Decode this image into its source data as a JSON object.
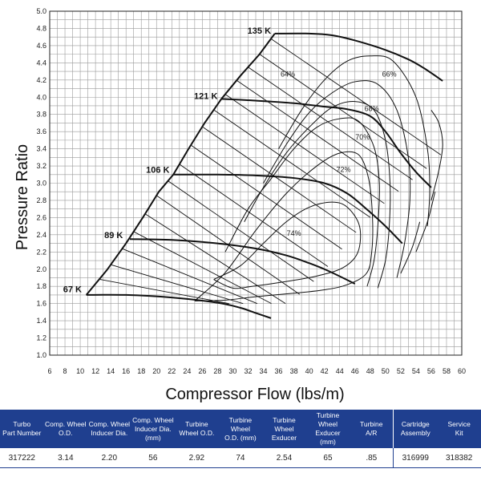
{
  "chart_data": {
    "type": "line",
    "title": "",
    "xlabel": "Compressor Flow (lbs/m)",
    "ylabel": "Pressure Ratio",
    "xlim": [
      6,
      60
    ],
    "ylim": [
      1.0,
      5.0
    ],
    "x_ticks": [
      6,
      8,
      10,
      12,
      14,
      16,
      18,
      20,
      22,
      24,
      26,
      28,
      30,
      32,
      34,
      36,
      38,
      40,
      42,
      44,
      46,
      48,
      50,
      52,
      54,
      56,
      58,
      60
    ],
    "y_ticks": [
      "1.0",
      "1.2",
      "1.4",
      "1.6",
      "1.8",
      "2.0",
      "2.2",
      "2.4",
      "2.6",
      "2.8",
      "3.0",
      "3.2",
      "3.4",
      "3.6",
      "3.8",
      "4.0",
      "4.2",
      "4.4",
      "4.6",
      "4.8",
      "5.0"
    ],
    "grid": true,
    "surge_line": [
      [
        10.8,
        1.7
      ],
      [
        13.5,
        1.99
      ],
      [
        16.0,
        2.3
      ],
      [
        18.2,
        2.6
      ],
      [
        20.3,
        2.9
      ],
      [
        22.2,
        3.1
      ],
      [
        24.2,
        3.4
      ],
      [
        26.3,
        3.7
      ],
      [
        28.5,
        3.98
      ],
      [
        31.0,
        4.25
      ],
      [
        33.5,
        4.5
      ],
      [
        35.5,
        4.74
      ]
    ],
    "speed_lines": [
      {
        "label": "67 K",
        "points": [
          [
            10.8,
            1.7
          ],
          [
            16.0,
            1.7
          ],
          [
            22.0,
            1.67
          ],
          [
            28.0,
            1.61
          ],
          [
            31.0,
            1.55
          ],
          [
            33.0,
            1.49
          ],
          [
            35.0,
            1.43
          ]
        ]
      },
      {
        "label": "89 K",
        "points": [
          [
            16.5,
            2.35
          ],
          [
            22.0,
            2.34
          ],
          [
            28.0,
            2.3
          ],
          [
            33.0,
            2.24
          ],
          [
            37.0,
            2.16
          ],
          [
            40.0,
            2.07
          ],
          [
            42.5,
            1.98
          ],
          [
            46.0,
            1.83
          ]
        ]
      },
      {
        "label": "106 K",
        "points": [
          [
            22.2,
            3.1
          ],
          [
            28.0,
            3.1
          ],
          [
            33.0,
            3.09
          ],
          [
            38.0,
            3.06
          ],
          [
            42.0,
            3.0
          ],
          [
            45.0,
            2.88
          ],
          [
            47.5,
            2.7
          ],
          [
            50.0,
            2.5
          ],
          [
            52.2,
            2.3
          ]
        ]
      },
      {
        "label": "121 K",
        "points": [
          [
            28.5,
            3.98
          ],
          [
            33.0,
            3.96
          ],
          [
            38.0,
            3.93
          ],
          [
            42.0,
            3.89
          ],
          [
            45.0,
            3.86
          ],
          [
            48.0,
            3.78
          ],
          [
            50.0,
            3.6
          ],
          [
            52.0,
            3.35
          ],
          [
            54.0,
            3.13
          ],
          [
            56.0,
            2.95
          ]
        ]
      },
      {
        "label": "135 K",
        "points": [
          [
            35.5,
            4.74
          ],
          [
            40.0,
            4.74
          ],
          [
            43.0,
            4.72
          ],
          [
            46.0,
            4.66
          ],
          [
            50.0,
            4.55
          ],
          [
            53.0,
            4.44
          ],
          [
            55.0,
            4.34
          ],
          [
            57.5,
            4.19
          ]
        ]
      }
    ],
    "efficiency_islands": [
      {
        "label": "74%",
        "points": [
          [
            27.5,
            1.88
          ],
          [
            31.0,
            2.04
          ],
          [
            34.0,
            2.3
          ],
          [
            37.0,
            2.55
          ],
          [
            40.0,
            2.72
          ],
          [
            43.0,
            2.78
          ],
          [
            45.0,
            2.72
          ],
          [
            46.6,
            2.5
          ],
          [
            46.4,
            2.2
          ],
          [
            44.5,
            2.02
          ],
          [
            41.0,
            1.92
          ],
          [
            36.5,
            1.85
          ],
          [
            32.5,
            1.8
          ],
          [
            30.0,
            1.78
          ],
          [
            27.5,
            1.88
          ]
        ]
      },
      {
        "label": "72%",
        "points": [
          [
            25.0,
            1.63
          ],
          [
            29.0,
            1.96
          ],
          [
            33.0,
            2.45
          ],
          [
            37.0,
            2.88
          ],
          [
            41.0,
            3.2
          ],
          [
            44.0,
            3.35
          ],
          [
            46.5,
            3.33
          ],
          [
            47.8,
            3.05
          ],
          [
            48.3,
            2.6
          ],
          [
            48.2,
            2.2
          ],
          [
            47.5,
            1.95
          ],
          [
            45.0,
            1.82
          ],
          [
            42.0,
            1.76
          ],
          [
            38.0,
            1.72
          ],
          [
            33.0,
            1.68
          ],
          [
            29.0,
            1.64
          ],
          [
            25.0,
            1.63
          ]
        ]
      },
      {
        "label": "70%",
        "points": [
          [
            29.0,
            2.2
          ],
          [
            32.0,
            2.7
          ],
          [
            35.0,
            3.05
          ],
          [
            38.0,
            3.4
          ],
          [
            41.0,
            3.65
          ],
          [
            44.0,
            3.75
          ],
          [
            46.5,
            3.72
          ],
          [
            48.5,
            3.42
          ],
          [
            49.2,
            3.0
          ],
          [
            49.0,
            2.5
          ],
          [
            48.5,
            2.1
          ],
          [
            47.6,
            1.8
          ]
        ]
      },
      {
        "label": "68%",
        "points": [
          [
            31.5,
            2.55
          ],
          [
            34.0,
            2.95
          ],
          [
            37.0,
            3.35
          ],
          [
            40.0,
            3.65
          ],
          [
            43.0,
            3.88
          ],
          [
            46.0,
            3.95
          ],
          [
            48.5,
            3.85
          ],
          [
            50.0,
            3.5
          ],
          [
            50.6,
            3.0
          ],
          [
            50.5,
            2.5
          ],
          [
            50.0,
            2.1
          ],
          [
            49.0,
            1.78
          ]
        ]
      },
      {
        "label": "66%",
        "points": [
          [
            34.0,
            3.0
          ],
          [
            37.0,
            3.45
          ],
          [
            40.0,
            3.82
          ],
          [
            43.0,
            4.05
          ],
          [
            46.0,
            4.18
          ],
          [
            49.0,
            4.15
          ],
          [
            51.5,
            3.85
          ],
          [
            53.0,
            3.3
          ],
          [
            53.2,
            2.8
          ],
          [
            52.5,
            2.3
          ],
          [
            51.5,
            1.9
          ]
        ]
      },
      {
        "label": "64%",
        "points": [
          [
            36.0,
            3.4
          ],
          [
            39.0,
            3.85
          ],
          [
            42.0,
            4.2
          ],
          [
            45.0,
            4.42
          ],
          [
            48.0,
            4.48
          ],
          [
            51.0,
            4.42
          ],
          [
            54.0,
            4.0
          ],
          [
            55.5,
            3.4
          ],
          [
            55.8,
            2.9
          ],
          [
            55.5,
            2.5
          ]
        ]
      },
      {
        "label": "",
        "points": [
          [
            56.0,
            2.8
          ],
          [
            57.0,
            3.15
          ],
          [
            57.5,
            3.45
          ],
          [
            57.0,
            3.7
          ],
          [
            56.0,
            3.85
          ]
        ]
      },
      {
        "label": "",
        "points": [
          [
            54.0,
            2.2
          ],
          [
            55.5,
            2.55
          ],
          [
            56.5,
            2.9
          ]
        ]
      },
      {
        "label": "",
        "points": [
          [
            52.0,
            1.95
          ],
          [
            53.5,
            2.25
          ],
          [
            54.5,
            2.55
          ]
        ]
      }
    ],
    "speed_label_positions": [
      {
        "label": "135 K",
        "x": 35.0,
        "y": 4.74
      },
      {
        "label": "121 K",
        "x": 28.0,
        "y": 3.98
      },
      {
        "label": "106 K",
        "x": 21.7,
        "y": 3.12
      },
      {
        "label": "89 K",
        "x": 15.6,
        "y": 2.36
      },
      {
        "label": "67 K",
        "x": 10.2,
        "y": 1.73
      }
    ],
    "efficiency_label_positions": [
      {
        "label": "64%",
        "x": 37.2,
        "y": 4.24
      },
      {
        "label": "66%",
        "x": 50.5,
        "y": 4.24
      },
      {
        "label": "68%",
        "x": 48.2,
        "y": 3.84
      },
      {
        "label": "70%",
        "x": 47.0,
        "y": 3.51
      },
      {
        "label": "72%",
        "x": 44.5,
        "y": 3.13
      },
      {
        "label": "74%",
        "x": 38.0,
        "y": 2.39
      }
    ]
  },
  "spec_table": {
    "headers": [
      [
        "Turbo",
        "Part Number"
      ],
      [
        "Comp. Wheel",
        "O.D."
      ],
      [
        "Comp. Wheel",
        "Inducer Dia."
      ],
      [
        "Comp. Wheel",
        "Inducer Dia. (mm)"
      ],
      [
        "Turbine",
        "Wheel O.D."
      ],
      [
        "Turbine Wheel",
        "O.D. (mm)"
      ],
      [
        "Turbine Wheel",
        "Exducer"
      ],
      [
        "Turbine Wheel",
        "Exducer (mm)"
      ],
      [
        "Turbine",
        "A/R"
      ],
      [
        "Cartridge",
        "Assembly"
      ],
      [
        "Service",
        "Kit"
      ]
    ],
    "values": [
      "317222",
      "3.14",
      "2.20",
      "56",
      "2.92",
      "74",
      "2.54",
      "65",
      ".85",
      "316999",
      "318382"
    ],
    "colors": {
      "header_bg": "#1f3f8f",
      "header_text": "#ffffff"
    }
  }
}
